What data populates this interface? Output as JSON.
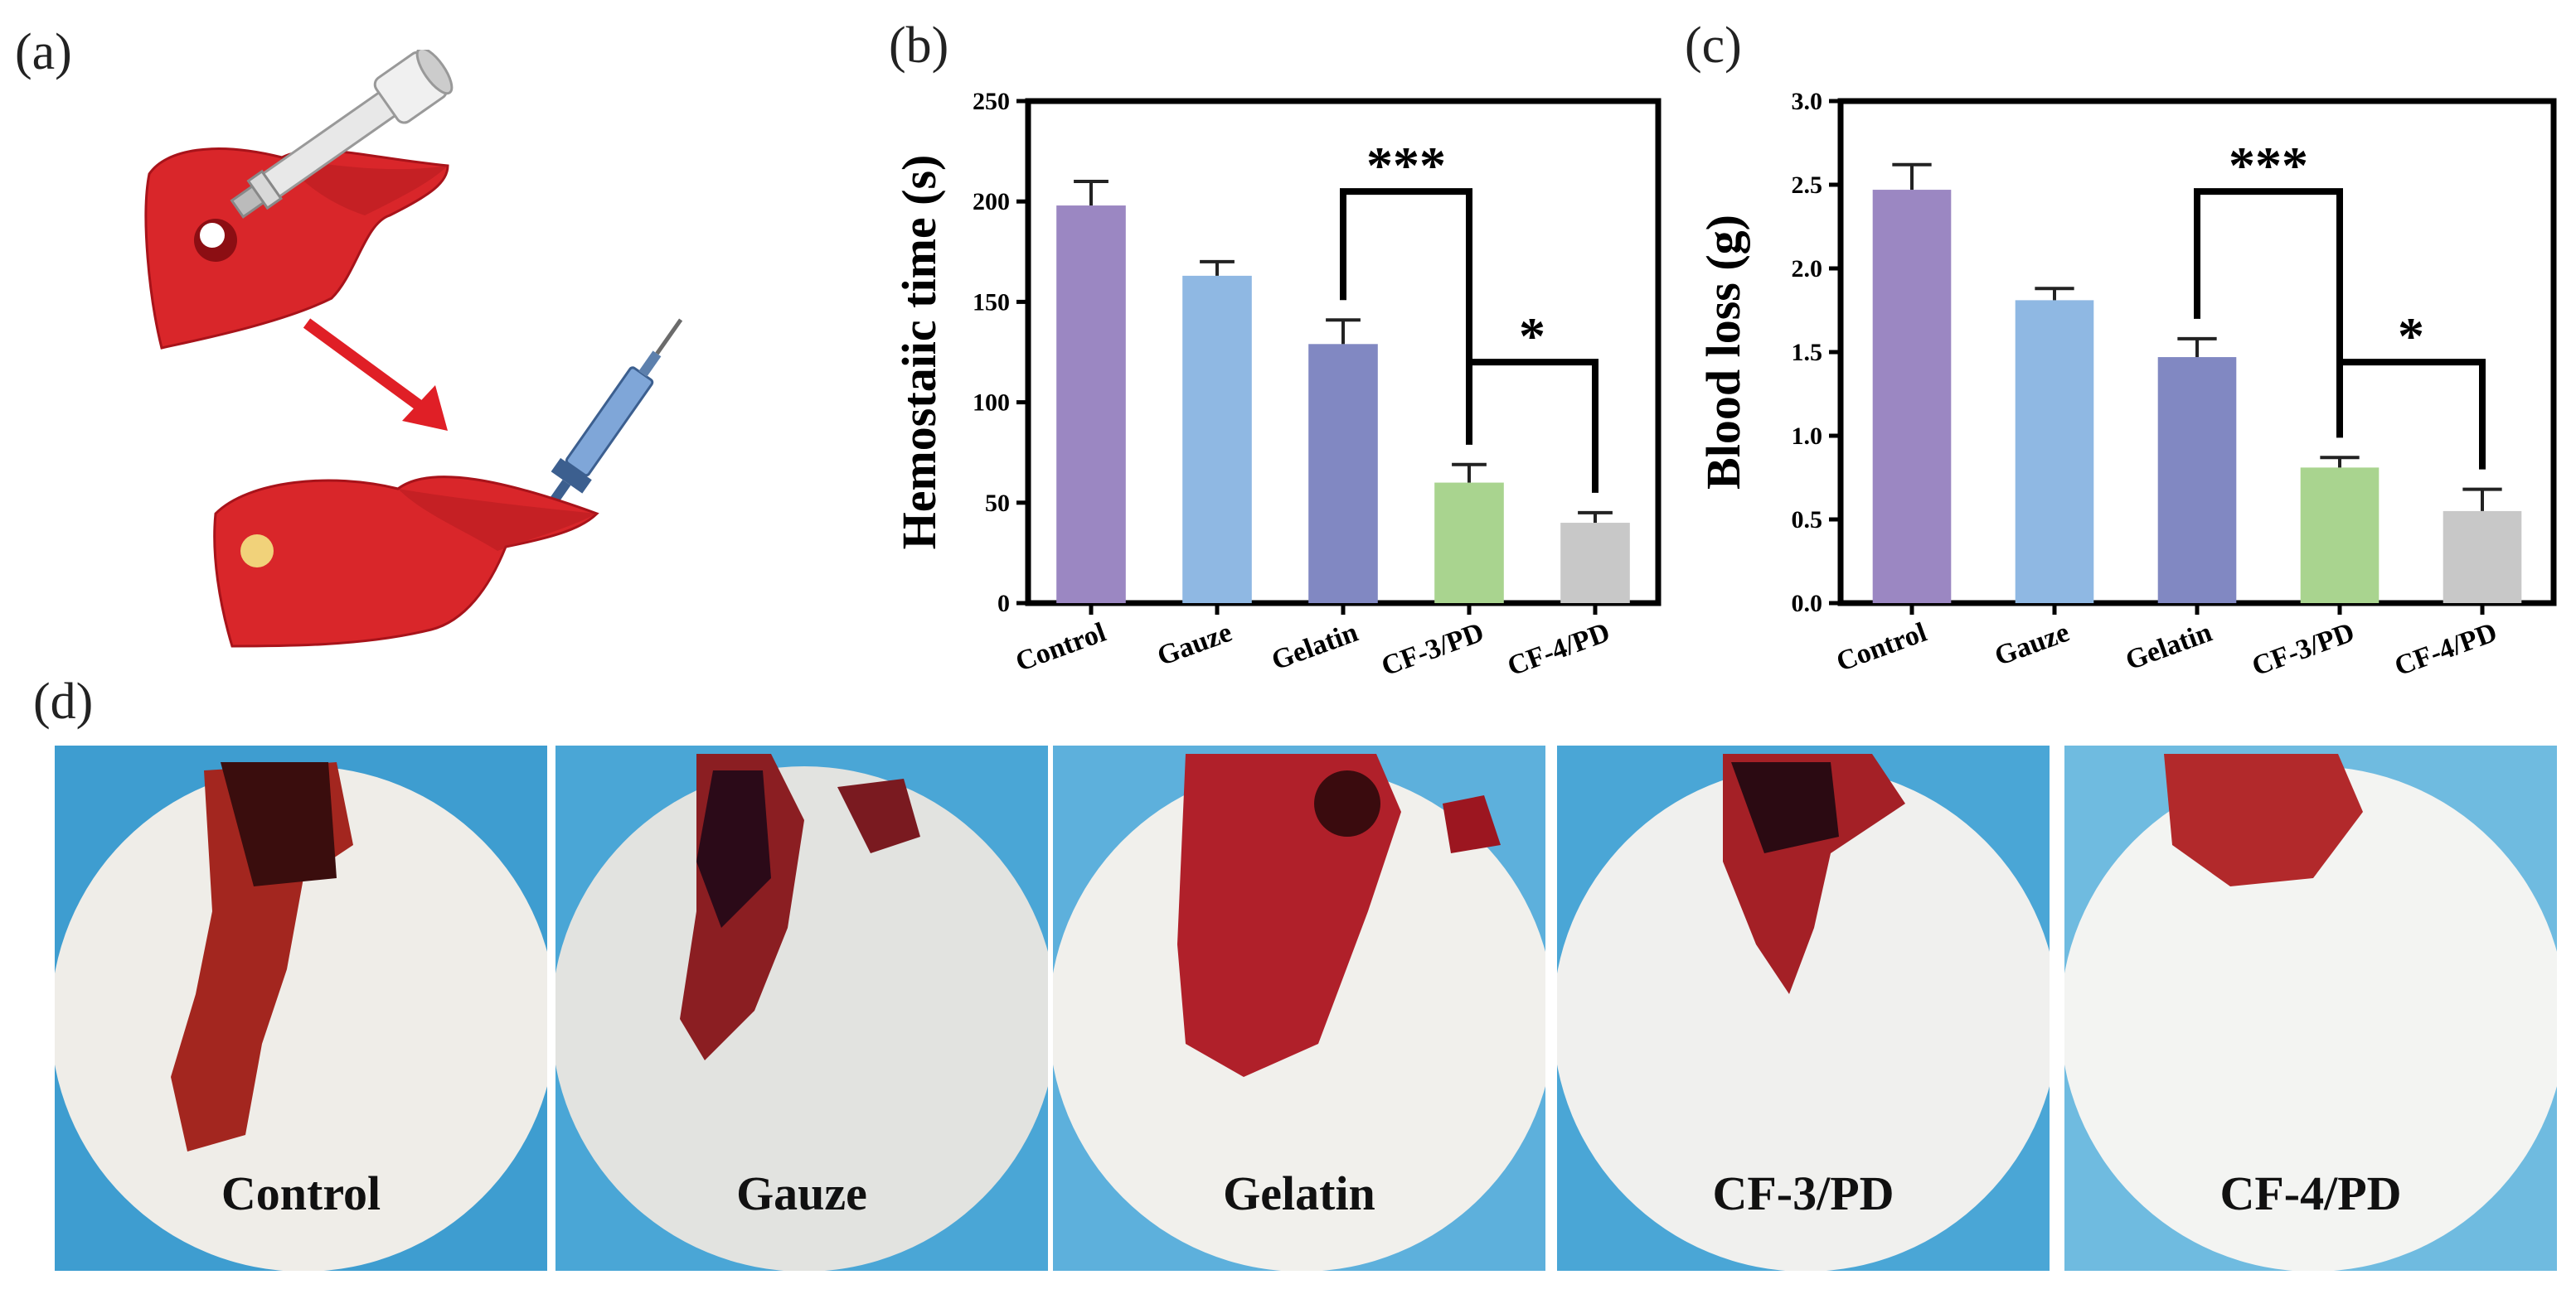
{
  "panels": {
    "a": "(a)",
    "b": "(b)",
    "c": "(c)",
    "d": "(d)"
  },
  "colors": {
    "control": "#9b87c2",
    "gauze": "#8fb8e3",
    "gelatin": "#8188c2",
    "cf3": "#a9d48f",
    "cf4": "#c8c8c8",
    "liver": "#d9262a",
    "background_blue": "#4aa6d6"
  },
  "chart_data": [
    {
      "type": "bar",
      "categories": [
        "Control",
        "Gauze",
        "Gelatin",
        "CF-3/PD",
        "CF-4/PD"
      ],
      "values": [
        198,
        163,
        129,
        60,
        40
      ],
      "errors": [
        12,
        7,
        12,
        9,
        5
      ],
      "ylabel": "Hemostaiic time (s)",
      "ylim": [
        0,
        250
      ],
      "yticks": [
        "0",
        "50",
        "100",
        "150",
        "200",
        "250"
      ],
      "significance": [
        {
          "from": "Gelatin",
          "to": "CF-3/PD",
          "label": "***"
        },
        {
          "from": "CF-3/PD",
          "to": "CF-4/PD",
          "label": "*"
        }
      ]
    },
    {
      "type": "bar",
      "categories": [
        "Control",
        "Gauze",
        "Gelatin",
        "CF-3/PD",
        "CF-4/PD"
      ],
      "values": [
        2.47,
        1.81,
        1.47,
        0.81,
        0.55
      ],
      "errors": [
        0.15,
        0.07,
        0.11,
        0.06,
        0.13
      ],
      "ylabel": "Blood loss (g)",
      "ylim": [
        0,
        3.0
      ],
      "yticks": [
        "0.0",
        "0.5",
        "1.0",
        "1.5",
        "2.0",
        "2.5",
        "3.0"
      ],
      "significance": [
        {
          "from": "Gelatin",
          "to": "CF-3/PD",
          "label": "***"
        },
        {
          "from": "CF-3/PD",
          "to": "CF-4/PD",
          "label": "*"
        }
      ]
    }
  ],
  "photos": [
    {
      "label": "Control",
      "bg": "#3e9dd0"
    },
    {
      "label": "Gauze",
      "bg": "#4aa6d6"
    },
    {
      "label": "Gelatin",
      "bg": "#5db0dc"
    },
    {
      "label": "CF-3/PD",
      "bg": "#4aa6d6"
    },
    {
      "label": "CF-4/PD",
      "bg": "#6fbbe0"
    }
  ]
}
